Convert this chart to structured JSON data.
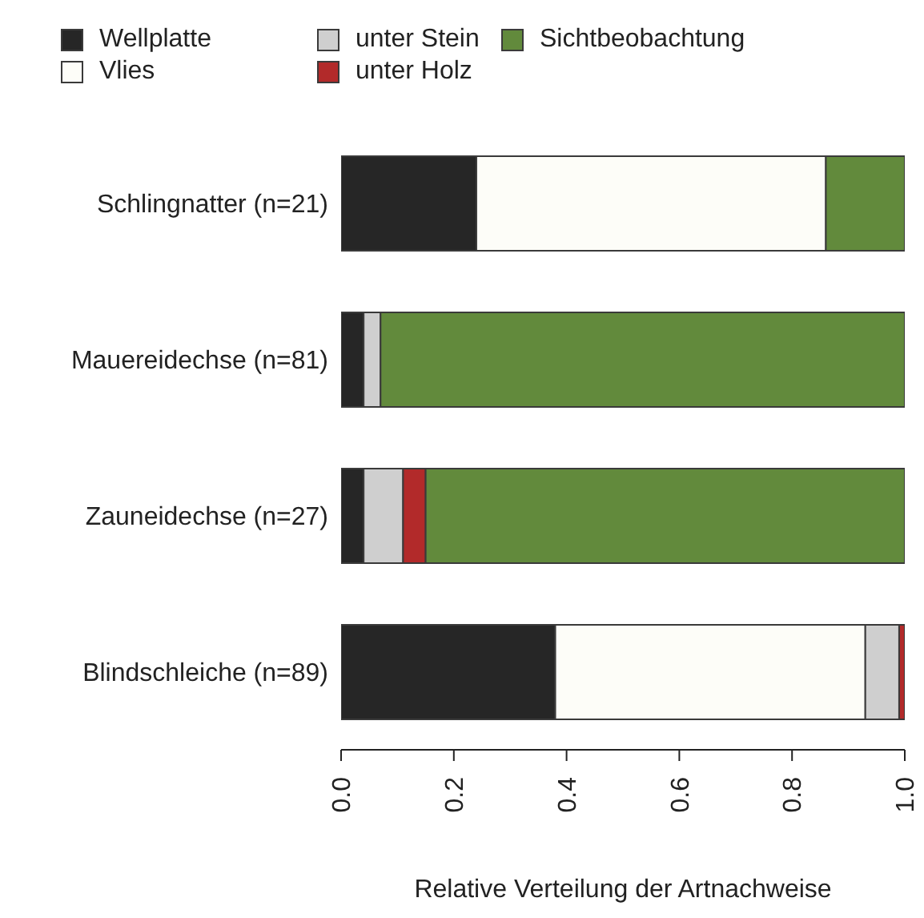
{
  "chart_data": {
    "type": "bar",
    "orientation": "horizontal",
    "stacked": true,
    "xlabel": "Relative Verteilung der Artnachweise",
    "categories": [
      "Schlingnatter (n=21)",
      "Mauereidechse (n=81)",
      "Zauneidechse (n=27)",
      "Blindschleiche (n=89)"
    ],
    "series": [
      {
        "name": "Wellplatte",
        "color": "#262626",
        "values": [
          0.24,
          0.04,
          0.04,
          0.38
        ]
      },
      {
        "name": "Vlies",
        "color": "#fdfdf8",
        "values": [
          0.62,
          0,
          0,
          0.55
        ]
      },
      {
        "name": "unter Stein",
        "color": "#cfcfcf",
        "values": [
          0,
          0.03,
          0.07,
          0.06
        ]
      },
      {
        "name": "unter Holz",
        "color": "#b22a2a",
        "values": [
          0,
          0,
          0.04,
          0.01
        ]
      },
      {
        "name": "Sichtbeobachtung",
        "color": "#628a3c",
        "values": [
          0.14,
          0.93,
          0.85,
          0
        ]
      }
    ],
    "xlim": [
      0,
      1
    ],
    "xticks": [
      {
        "value": 0,
        "label": "0.0"
      },
      {
        "value": 0.2,
        "label": "0.2"
      },
      {
        "value": 0.4,
        "label": "0.4"
      },
      {
        "value": 0.6,
        "label": "0.6"
      },
      {
        "value": 0.8,
        "label": "0.8"
      },
      {
        "value": 1,
        "label": "1.0"
      }
    ],
    "legend": "top left"
  }
}
